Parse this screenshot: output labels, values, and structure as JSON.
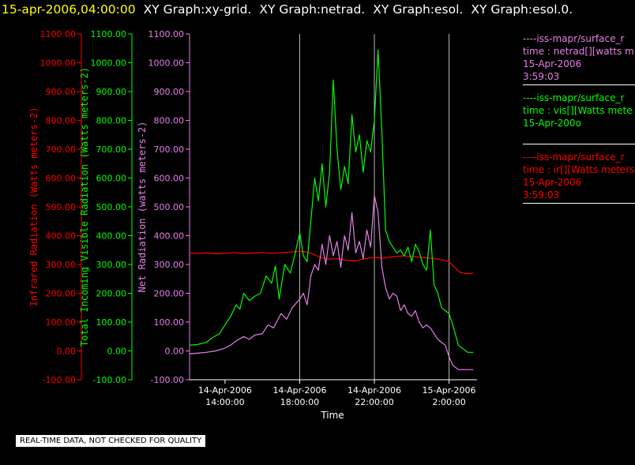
{
  "header": {
    "timestamp": "15-apr-2006,04:00:00",
    "graphs": [
      "XY Graph:xy-grid.",
      "XY Graph:netrad.",
      "XY Graph:esol.",
      "XY Graph:esol.0."
    ]
  },
  "colors": {
    "timestamp": "#ffff00",
    "graph_titles": "#ffffff",
    "net": "#e680e6",
    "vis": "#00ff00",
    "ir": "#ff0000",
    "axes": "#ffffff",
    "grid": "#b8b8b8"
  },
  "legend": [
    {
      "series": "net",
      "line1": "----iss-mapr/surface_r",
      "line2": "time : netrad[][watts m",
      "line3": "15-Apr-2006",
      "line4": "3:59:03"
    },
    {
      "series": "vis",
      "line1": "----iss-mapr/surface_r",
      "line2": "time : vis[][Watts mete",
      "line3": "15-Apr-200o",
      "line4": ""
    },
    {
      "series": "ir",
      "line1": "----iss-mapr/surface_r",
      "line2": "time : ir[][Watts meters",
      "line3": "15-Apr-2006",
      "line4": "3:59:03"
    }
  ],
  "notice": "REAL-TIME DATA, NOT CHECKED FOR QUALITY",
  "chart_data": {
    "type": "line",
    "xlabel": "Time",
    "x_unit": "hours since 14-Apr-2006 00:00",
    "xlim": [
      12.1,
      27.5
    ],
    "x_ticks": [
      {
        "value": 14,
        "line1": "14-Apr-2006",
        "line2": "14:00:00"
      },
      {
        "value": 18,
        "line1": "14-Apr-2006",
        "line2": "18:00:00"
      },
      {
        "value": 22,
        "line1": "14-Apr-2006",
        "line2": "22:00:00"
      },
      {
        "value": 26,
        "line1": "15-Apr-2006",
        "line2": "2:00:00"
      }
    ],
    "grid_x": [
      18,
      22,
      26
    ],
    "ylim": [
      -100,
      1100
    ],
    "y_ticks": [
      "-100.00",
      "0.00",
      "100.00",
      "200.00",
      "300.00",
      "400.00",
      "500.00",
      "600.00",
      "700.00",
      "800.00",
      "900.00",
      "1000.00",
      "1100.00"
    ],
    "y_tick_values": [
      -100,
      0,
      100,
      200,
      300,
      400,
      500,
      600,
      700,
      800,
      900,
      1000,
      1100
    ],
    "axes": [
      {
        "series": "ir",
        "label": "Infrared Radiation (Watts meters-2)"
      },
      {
        "series": "vis",
        "label": "Total Incoming Visible Radiation (Watts meters-2)"
      },
      {
        "series": "net",
        "label": "Net Radiation (watts meters-2)"
      }
    ],
    "series": [
      {
        "name": "ir",
        "x": [
          12.1,
          12.5,
          13,
          13.5,
          14,
          14.5,
          15,
          15.5,
          16,
          16.5,
          17,
          17.5,
          18,
          18.5,
          19,
          19.5,
          20,
          20.5,
          21,
          21.5,
          22,
          22.5,
          23,
          23.5,
          24,
          24.5,
          25,
          25.5,
          26,
          26.3,
          26.6,
          27,
          27.3
        ],
        "y": [
          340,
          338,
          340,
          337,
          339,
          341,
          338,
          340,
          342,
          339,
          341,
          343,
          346,
          342,
          328,
          318,
          320,
          315,
          312,
          320,
          325,
          322,
          327,
          330,
          328,
          325,
          322,
          318,
          310,
          290,
          272,
          268,
          270
        ]
      },
      {
        "name": "vis",
        "x": [
          12.1,
          12.5,
          13,
          13.3,
          13.7,
          14,
          14.3,
          14.6,
          14.8,
          15,
          15.3,
          15.6,
          15.9,
          16.2,
          16.5,
          16.7,
          16.9,
          17.2,
          17.5,
          17.8,
          18,
          18.2,
          18.4,
          18.6,
          18.8,
          19,
          19.2,
          19.4,
          19.6,
          19.8,
          20,
          20.2,
          20.4,
          20.6,
          20.8,
          21,
          21.2,
          21.4,
          21.6,
          21.8,
          22,
          22.2,
          22.4,
          22.6,
          22.8,
          23,
          23.2,
          23.4,
          23.6,
          23.8,
          24,
          24.2,
          24.4,
          24.6,
          24.8,
          25,
          25.2,
          25.4,
          25.6,
          25.8,
          26,
          26.2,
          26.5,
          27,
          27.3
        ],
        "y": [
          20,
          22,
          30,
          45,
          60,
          90,
          120,
          160,
          145,
          200,
          175,
          190,
          200,
          260,
          235,
          295,
          180,
          300,
          270,
          350,
          410,
          330,
          310,
          450,
          600,
          520,
          650,
          500,
          620,
          940,
          700,
          560,
          640,
          580,
          820,
          690,
          750,
          620,
          730,
          690,
          800,
          1045,
          760,
          420,
          380,
          360,
          340,
          350,
          330,
          360,
          310,
          370,
          345,
          300,
          280,
          420,
          230,
          200,
          150,
          140,
          130,
          90,
          20,
          -5,
          -5
        ]
      },
      {
        "name": "net",
        "x": [
          12.1,
          12.5,
          13,
          13.5,
          14,
          14.3,
          14.6,
          15,
          15.3,
          15.6,
          16,
          16.3,
          16.6,
          17,
          17.3,
          17.6,
          18,
          18.2,
          18.4,
          18.6,
          18.8,
          19,
          19.2,
          19.4,
          19.6,
          19.8,
          20,
          20.2,
          20.4,
          20.6,
          20.8,
          21,
          21.2,
          21.4,
          21.6,
          21.8,
          22,
          22.2,
          22.4,
          22.6,
          22.8,
          23,
          23.2,
          23.4,
          23.6,
          23.8,
          24,
          24.2,
          24.4,
          24.6,
          24.8,
          25,
          25.2,
          25.4,
          25.6,
          25.8,
          26,
          26.2,
          26.5,
          27,
          27.3
        ],
        "y": [
          -10,
          -8,
          -5,
          0,
          10,
          20,
          35,
          50,
          40,
          55,
          60,
          90,
          80,
          130,
          110,
          150,
          180,
          200,
          160,
          260,
          300,
          280,
          370,
          300,
          400,
          330,
          380,
          290,
          400,
          350,
          480,
          340,
          380,
          320,
          420,
          360,
          540,
          480,
          290,
          220,
          180,
          200,
          190,
          140,
          160,
          130,
          120,
          140,
          100,
          80,
          90,
          80,
          60,
          40,
          30,
          20,
          -20,
          -50,
          -65,
          -65,
          -65
        ]
      }
    ]
  }
}
